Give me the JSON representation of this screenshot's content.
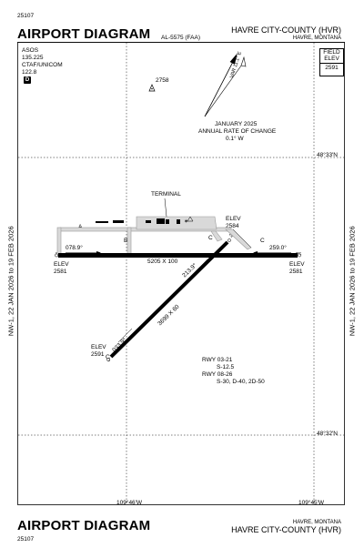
{
  "header": {
    "doc_number": "25107",
    "title": "AIRPORT DIAGRAM",
    "airport_name": "HAVRE CITY-COUNTY (HVR)",
    "city_state": "HAVRE, MONTANA",
    "chart_id": "AL-5575 (FAA)"
  },
  "footer": {
    "doc_number": "25107",
    "title": "AIRPORT DIAGRAM",
    "airport_name": "HAVRE CITY-COUNTY (HVR)",
    "city_state": "HAVRE, MONTANA"
  },
  "effectivity": {
    "left": "NW-1,  22 JAN 2026  to  19 FEB 2026",
    "right": "NW-1,  22 JAN 2026  to  19 FEB 2026"
  },
  "comms": {
    "asos_label": "ASOS",
    "asos_freq": "135.225",
    "ctaf_label": "CTAF/UNICOM",
    "ctaf_freq": "122.8",
    "d_symbol": "D"
  },
  "field_elev": {
    "line1": "FIELD",
    "line2": "ELEV",
    "value": "2591"
  },
  "variation": {
    "var_label": "VAR 11.1° E",
    "date": "JANUARY 2025",
    "rate_label": "ANNUAL RATE OF CHANGE",
    "rate_value": "0.1° W"
  },
  "coordinates": {
    "lat_north": "48°33'N",
    "lat_south": "48°32'N",
    "lon_west": "109°46'W",
    "lon_east": "109°45'W"
  },
  "obstacle": {
    "elevation": "2758"
  },
  "labels": {
    "terminal": "TERMINAL",
    "taxiway_a": "A",
    "taxiway_b": "B",
    "taxiway_c1": "C",
    "taxiway_c2": "C",
    "taxiway_c3": "C"
  },
  "runways": {
    "rwy_08_26": {
      "dimensions": "5205 X 100",
      "end_08": {
        "number": "8",
        "heading": "078.9°",
        "elev_label": "ELEV",
        "elev": "2581"
      },
      "end_26": {
        "number": "26",
        "heading": "259.0°",
        "elev_label": "ELEV",
        "elev": "2581"
      }
    },
    "rwy_03_21": {
      "dimensions": "3699 X 60",
      "end_03": {
        "number": "3",
        "heading": "033.9°",
        "elev_label": "ELEV",
        "elev": "2591"
      },
      "end_21": {
        "number": "21",
        "heading": "213.9°",
        "elev_label": "ELEV",
        "elev": "2584"
      }
    }
  },
  "strength_table": {
    "row1_label": "RWY  03-21",
    "row1_value": "S-12.5",
    "row2_label": "RWY  08-26",
    "row2_value": "S-30, D-40, 2D-50"
  }
}
